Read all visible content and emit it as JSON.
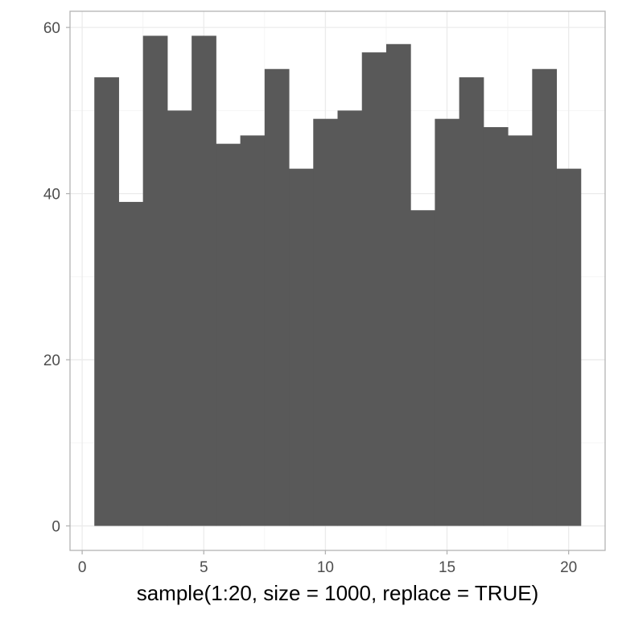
{
  "chart_data": {
    "type": "bar",
    "title": "",
    "xlabel": "sample(1:20, size = 1000, replace = TRUE)",
    "ylabel": "",
    "x": [
      1,
      2,
      3,
      4,
      5,
      6,
      7,
      8,
      9,
      10,
      11,
      12,
      13,
      14,
      15,
      16,
      17,
      18,
      19,
      20
    ],
    "values": [
      54,
      39,
      59,
      50,
      59,
      46,
      47,
      55,
      43,
      49,
      50,
      57,
      58,
      38,
      49,
      54,
      48,
      47,
      55,
      43
    ],
    "bin_width": 1,
    "xlim": [
      -0.5,
      21.5
    ],
    "ylim": [
      -2.95,
      61.95
    ],
    "x_ticks": [
      "0",
      "5",
      "10",
      "15",
      "20"
    ],
    "x_tick_values": [
      0,
      5,
      10,
      15,
      20
    ],
    "y_ticks": [
      "0",
      "20",
      "40",
      "60"
    ],
    "y_tick_values": [
      0,
      20,
      40,
      60
    ],
    "x_minor_values": [
      2.5,
      7.5,
      12.5,
      17.5
    ],
    "y_minor_values": [
      10,
      30,
      50
    ],
    "grid": true,
    "legend": "none",
    "colors": {
      "bar": "#595959",
      "grid_major": "#ebebeb",
      "grid_minor": "#f5f5f5",
      "panel_border": "#b3b3b3",
      "tick_label": "#4d4d4d",
      "tick_mark": "#b3b3b3",
      "axis_title": "#000000"
    }
  }
}
